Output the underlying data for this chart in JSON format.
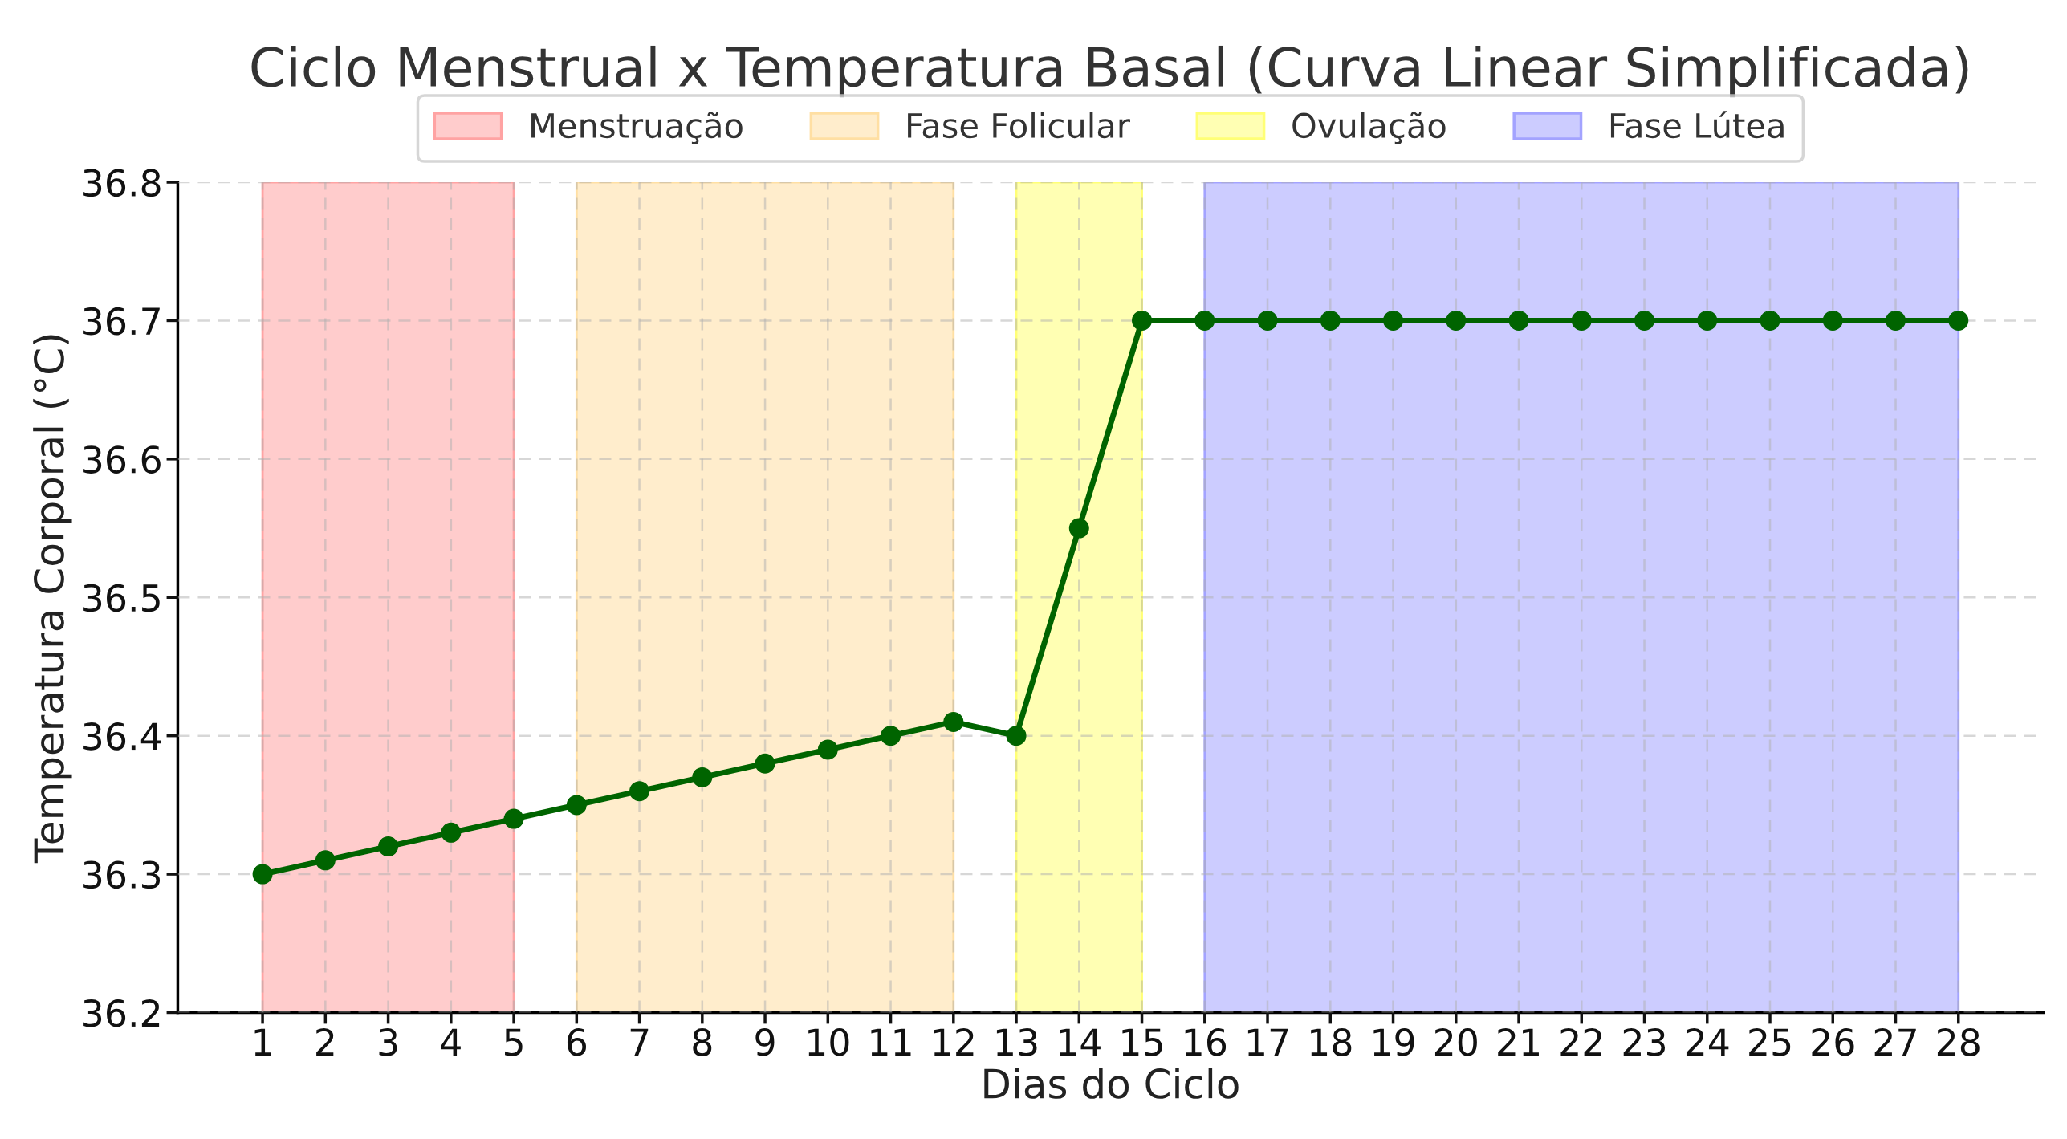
{
  "chart_data": {
    "type": "line",
    "title": "Ciclo Menstrual x Temperatura Basal (Curva Linear Simplificada)",
    "xlabel": "Dias do Ciclo",
    "ylabel": "Temperatura Corporal (°C)",
    "x": [
      1,
      2,
      3,
      4,
      5,
      6,
      7,
      8,
      9,
      10,
      11,
      12,
      13,
      14,
      15,
      16,
      17,
      18,
      19,
      20,
      21,
      22,
      23,
      24,
      25,
      26,
      27,
      28
    ],
    "series": [
      {
        "color": "#006400",
        "values": [
          36.3,
          36.31,
          36.32,
          36.33,
          36.34,
          36.35,
          36.36,
          36.37,
          36.38,
          36.39,
          36.4,
          36.41,
          36.4,
          36.55,
          36.7,
          36.7,
          36.7,
          36.7,
          36.7,
          36.7,
          36.7,
          36.7,
          36.7,
          36.7,
          36.7,
          36.7,
          36.7,
          36.7
        ]
      }
    ],
    "bands": [
      {
        "axis": "x",
        "from": 1,
        "to": 5,
        "label": "Menstruação",
        "color": "#ffcccc"
      },
      {
        "axis": "x",
        "from": 6,
        "to": 12,
        "label": "Fase Folicular",
        "color": "#ffedcc"
      },
      {
        "axis": "x",
        "from": 13,
        "to": 15,
        "label": "Ovulação",
        "color": "#ffffb3"
      },
      {
        "axis": "x",
        "from": 16,
        "to": 28,
        "label": "Fase Lútea",
        "color": "#ccccff"
      }
    ],
    "xlim": [
      -0.35,
      29.35
    ],
    "xticks": [
      1,
      2,
      3,
      4,
      5,
      6,
      7,
      8,
      9,
      10,
      11,
      12,
      13,
      14,
      15,
      16,
      17,
      18,
      19,
      20,
      21,
      22,
      23,
      24,
      25,
      26,
      27,
      28
    ],
    "ylim": [
      36.2,
      36.8
    ],
    "yticks": [
      36.2,
      36.3,
      36.4,
      36.5,
      36.6,
      36.7,
      36.8
    ],
    "grid": true,
    "legend": "top",
    "marker": "circle",
    "line_style": "solid"
  }
}
